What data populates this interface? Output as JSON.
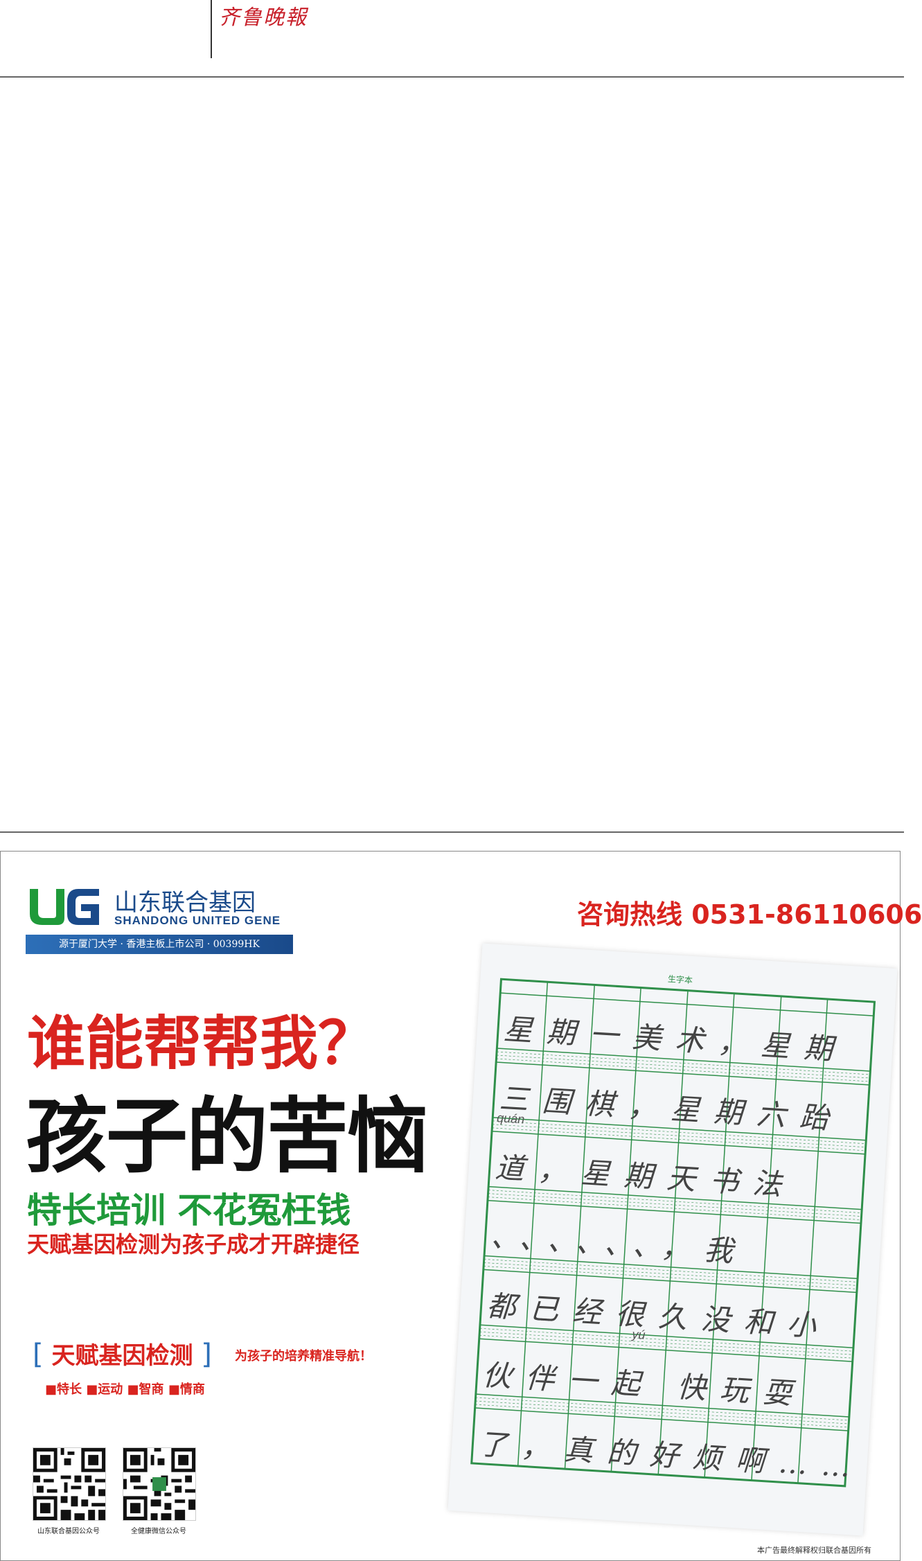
{
  "masthead": {
    "title": "齐鲁晚報"
  },
  "ad": {
    "brand": {
      "logo_text": "UG",
      "name_cn": "山东联合基因",
      "name_en": "SHANDONG UNITED GENE",
      "tagline": "源于厦门大学 · 香港主板上市公司 · 00399HK"
    },
    "hotline": "咨询热线 0531-86110606",
    "headline1": "谁能帮帮我？",
    "headline2": "孩子的苦恼",
    "exclamation": "!",
    "slogan1": "特长培训  不花冤枉钱",
    "slogan2": "天赋基因检测为孩子成才开辟捷径",
    "test": {
      "bracket_open": "[",
      "title": "天赋基因检测",
      "bracket_close": "]",
      "subtitle": "为孩子的培养精准导航！",
      "items": "■特长 ■运动 ■智商 ■情商"
    },
    "qr": [
      {
        "caption": "山东联合基因公众号"
      },
      {
        "caption": "全健康微信公众号"
      }
    ],
    "disclaimer": "本广告最终解释权归联合基因所有",
    "notebook": {
      "title": "生字本",
      "rows": [
        "星期一美术，星期",
        "三围棋，星期六跆",
        "道，星期天书法",
        "、、、、、、，我",
        "都已经很久没和小",
        "伙伴一起 快玩耍",
        "了，真的好烦啊……"
      ],
      "pinyin": [
        "quán",
        "yú"
      ]
    },
    "colors": {
      "red": "#d9241f",
      "green": "#1f9a3a",
      "blue": "#1a4a8a"
    }
  }
}
